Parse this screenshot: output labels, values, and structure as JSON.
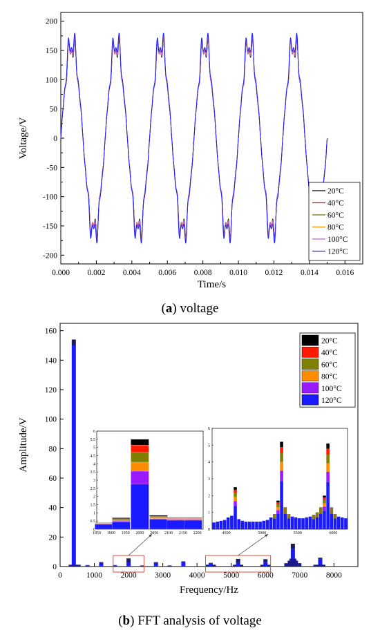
{
  "chart_data": [
    {
      "type": "line",
      "xlabel": "Time/s",
      "ylabel": "Voltage/V",
      "xlim": [
        0.0,
        0.017
      ],
      "ylim": [
        -215,
        215
      ],
      "xticks": [
        "0.000",
        "0.002",
        "0.004",
        "0.006",
        "0.008",
        "0.010",
        "0.012",
        "0.014",
        "0.016"
      ],
      "yticks": [
        "200",
        "150",
        "100",
        "50",
        "0",
        "-50",
        "-100",
        "-150",
        "-200"
      ],
      "frequency_hz": 400,
      "duration_s": 0.015,
      "legend_position": "bottom-right",
      "series": [
        {
          "name": "20°C",
          "color": "#000000",
          "peak": 175
        },
        {
          "name": "40°C",
          "color": "#ff0000",
          "peak": 178
        },
        {
          "name": "60°C",
          "color": "#7a6a00",
          "peak": 176
        },
        {
          "name": "80°C",
          "color": "#ff8c00",
          "peak": 180
        },
        {
          "name": "100°C",
          "color": "#c060e0",
          "peak": 177
        },
        {
          "name": "120°C",
          "color": "#2020ff",
          "peak": 184
        }
      ],
      "caption_letter": "a",
      "caption_text": "voltage"
    },
    {
      "type": "bar",
      "xlabel": "Frequency/Hz",
      "ylabel": "Amplitude/V",
      "xlim": [
        0,
        8700
      ],
      "ylim": [
        0,
        165
      ],
      "xticks": [
        "0",
        "1000",
        "2000",
        "3000",
        "4000",
        "5000",
        "6000",
        "7000",
        "8000"
      ],
      "yticks": [
        "0",
        "20",
        "40",
        "60",
        "80",
        "100",
        "120",
        "140",
        "160"
      ],
      "legend_position": "top-right",
      "series_order_bottom_to_top": [
        "120°C",
        "100°C",
        "80°C",
        "60°C",
        "40°C",
        "20°C"
      ],
      "series": [
        {
          "name": "20°C",
          "color": "#000000"
        },
        {
          "name": "40°C",
          "color": "#ff1a00"
        },
        {
          "name": "60°C",
          "color": "#808000"
        },
        {
          "name": "80°C",
          "color": "#ff8c00"
        },
        {
          "name": "100°C",
          "color": "#9a1aff"
        },
        {
          "name": "120°C",
          "color": "#1a1aff"
        }
      ],
      "bars": [
        {
          "x": 400,
          "total": 154,
          "base": 150
        },
        {
          "x": 800,
          "total": 1,
          "base": 0.8
        },
        {
          "x": 1200,
          "total": 3,
          "base": 2.5
        },
        {
          "x": 1600,
          "total": 1,
          "base": 0.8
        },
        {
          "x": 2000,
          "total": 5.5,
          "base": 2.8
        },
        {
          "x": 2400,
          "total": 0.8,
          "base": 0.6
        },
        {
          "x": 2800,
          "total": 3,
          "base": 2.5
        },
        {
          "x": 3200,
          "total": 0.8,
          "base": 0.6
        },
        {
          "x": 3600,
          "total": 3.5,
          "base": 3
        },
        {
          "x": 4400,
          "total": 2.5,
          "base": 2
        },
        {
          "x": 5200,
          "total": 5.2,
          "base": 2.6
        },
        {
          "x": 6000,
          "total": 5,
          "base": 3
        },
        {
          "x": 6800,
          "total": 15.5,
          "base": 12
        },
        {
          "x": 7600,
          "total": 6,
          "base": 5
        }
      ],
      "inset_left": {
        "xticks": [
          "1850",
          "1900",
          "1950",
          "2000",
          "2050",
          "2100",
          "2150",
          "2200"
        ],
        "yticks": [
          "0",
          "0.5",
          "1",
          "1.5",
          "2",
          "2.5",
          "3",
          "3.5",
          "4",
          "4.5",
          "5",
          "5.5",
          "6"
        ],
        "xlim": [
          1850,
          2220
        ],
        "ylim": [
          0,
          6
        ],
        "bars": [
          {
            "x": 1875,
            "h": [
              0.3,
              0.02,
              0.02,
              0.02,
              0.02,
              0.02
            ]
          },
          {
            "x": 1935,
            "h": [
              0.45,
              0.05,
              0.05,
              0.05,
              0.05,
              0.05
            ]
          },
          {
            "x": 2000,
            "h": [
              2.75,
              0.8,
              0.55,
              0.6,
              0.45,
              0.35
            ]
          },
          {
            "x": 2065,
            "h": [
              0.6,
              0.05,
              0.05,
              0.05,
              0.05,
              0.05
            ]
          },
          {
            "x": 2125,
            "h": [
              0.55,
              0.03,
              0.03,
              0.03,
              0.03,
              0.03
            ]
          },
          {
            "x": 2185,
            "h": [
              0.55,
              0.03,
              0.03,
              0.03,
              0.03,
              0.03
            ]
          }
        ]
      },
      "inset_right": {
        "xticks": [
          "4500",
          "5000",
          "5500",
          "6000"
        ],
        "yticks": [
          "0",
          "1",
          "2",
          "3",
          "4",
          "5",
          "6"
        ],
        "xlim": [
          4300,
          6200
        ],
        "ylim": [
          0,
          6
        ],
        "bars": [
          {
            "x": 4325,
            "total": 0.4
          },
          {
            "x": 4375,
            "total": 0.45
          },
          {
            "x": 4425,
            "total": 0.5
          },
          {
            "x": 4475,
            "total": 0.55
          },
          {
            "x": 4525,
            "total": 0.7
          },
          {
            "x": 4575,
            "total": 0.8
          },
          {
            "x": 4625,
            "total": 2.5
          },
          {
            "x": 4675,
            "total": 0.6
          },
          {
            "x": 4725,
            "total": 0.5
          },
          {
            "x": 4775,
            "total": 0.45
          },
          {
            "x": 4825,
            "total": 0.45
          },
          {
            "x": 4875,
            "total": 0.45
          },
          {
            "x": 4925,
            "total": 0.45
          },
          {
            "x": 4975,
            "total": 0.45
          },
          {
            "x": 5025,
            "total": 0.5
          },
          {
            "x": 5075,
            "total": 0.55
          },
          {
            "x": 5125,
            "total": 0.7
          },
          {
            "x": 5175,
            "total": 0.9
          },
          {
            "x": 5225,
            "total": 1.7
          },
          {
            "x": 5275,
            "total": 5.2
          },
          {
            "x": 5325,
            "total": 1.3
          },
          {
            "x": 5375,
            "total": 0.9
          },
          {
            "x": 5425,
            "total": 0.75
          },
          {
            "x": 5475,
            "total": 0.7
          },
          {
            "x": 5525,
            "total": 0.65
          },
          {
            "x": 5575,
            "total": 0.65
          },
          {
            "x": 5625,
            "total": 0.7
          },
          {
            "x": 5675,
            "total": 0.75
          },
          {
            "x": 5725,
            "total": 0.85
          },
          {
            "x": 5775,
            "total": 1.0
          },
          {
            "x": 5825,
            "total": 1.3
          },
          {
            "x": 5875,
            "total": 2.0
          },
          {
            "x": 5925,
            "total": 5.1
          },
          {
            "x": 5975,
            "total": 1.3
          },
          {
            "x": 6025,
            "total": 0.9
          },
          {
            "x": 6075,
            "total": 0.75
          },
          {
            "x": 6125,
            "total": 0.7
          },
          {
            "x": 6175,
            "total": 0.65
          }
        ]
      },
      "caption_letter": "b",
      "caption_text": "FFT analysis of voltage"
    }
  ]
}
